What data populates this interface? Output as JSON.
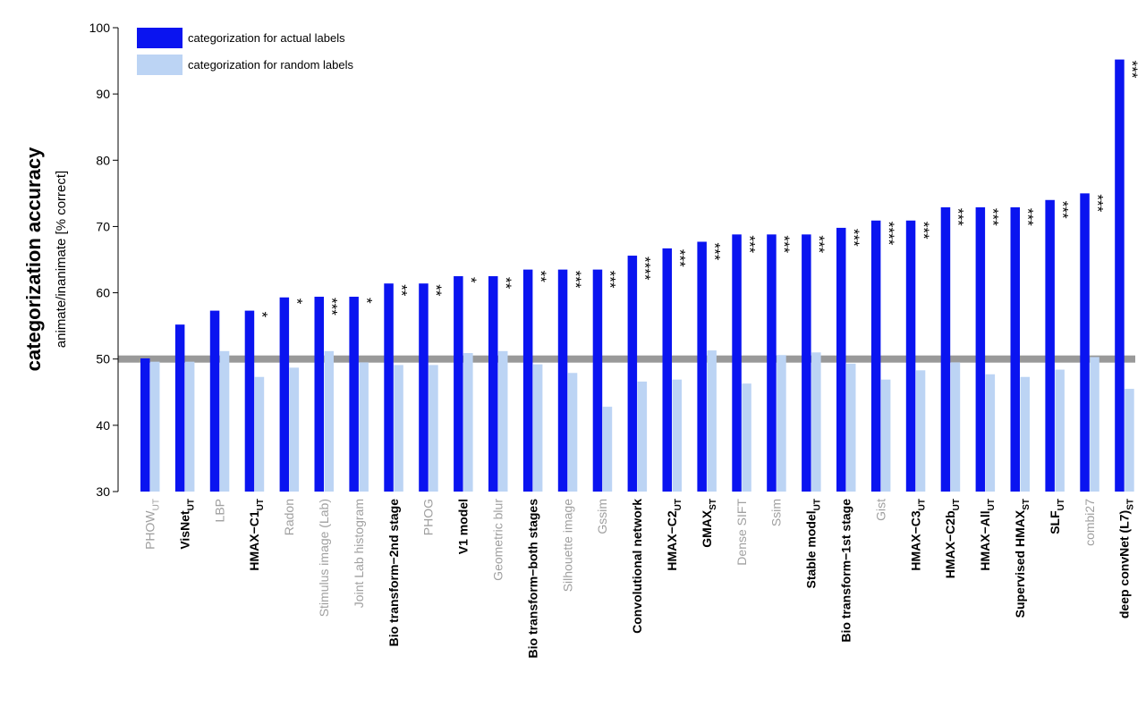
{
  "chart_data": {
    "type": "bar",
    "ylabel": "categorization accuracy",
    "ylabel_sub": "animate/inanimate [% correct]",
    "ylim": [
      30,
      100
    ],
    "yticks": [
      30,
      40,
      50,
      60,
      70,
      80,
      90,
      100
    ],
    "chance_level": 50,
    "grid": false,
    "legend_position": "top-left",
    "colors": {
      "actual": "#0a14f0",
      "random": "#bcd4f4",
      "label_black": "#000000",
      "label_gray": "#a0a0a0",
      "chance_line": "#999999"
    },
    "series": [
      {
        "name": "categorization for actual labels",
        "values": [
          50.1,
          55.2,
          57.3,
          57.3,
          59.3,
          59.4,
          59.4,
          61.4,
          61.4,
          62.5,
          62.5,
          63.5,
          63.5,
          63.5,
          65.6,
          66.7,
          67.7,
          68.8,
          68.8,
          68.8,
          69.8,
          70.9,
          70.9,
          72.9,
          72.9,
          72.9,
          74.0,
          75.0,
          95.2
        ]
      },
      {
        "name": "categorization for random labels",
        "values": [
          49.6,
          49.6,
          51.2,
          47.3,
          48.7,
          51.2,
          49.5,
          49.1,
          49.1,
          50.9,
          51.2,
          49.2,
          47.9,
          42.8,
          46.6,
          46.9,
          51.3,
          46.3,
          50.6,
          51.0,
          49.3,
          46.9,
          48.3,
          49.5,
          47.7,
          47.3,
          48.4,
          50.3,
          45.5
        ]
      }
    ],
    "categories": [
      {
        "label": "PHOW",
        "sub": "UT",
        "gray": true,
        "sig": ""
      },
      {
        "label": "VisNet",
        "sub": "UT",
        "gray": false,
        "sig": ""
      },
      {
        "label": "LBP",
        "sub": "",
        "gray": true,
        "sig": ""
      },
      {
        "label": "HMAX−C1",
        "sub": "UT",
        "gray": false,
        "sig": "*"
      },
      {
        "label": "Radon",
        "sub": "",
        "gray": true,
        "sig": "*"
      },
      {
        "label": "Stimulus image (Lab)",
        "sub": "",
        "gray": true,
        "sig": "***"
      },
      {
        "label": "Joint Lab histogram",
        "sub": "",
        "gray": true,
        "sig": "*"
      },
      {
        "label": "Bio transform−2nd  stage",
        "sub": "",
        "gray": false,
        "sig": "**"
      },
      {
        "label": "PHOG",
        "sub": "",
        "gray": true,
        "sig": "**"
      },
      {
        "label": "V1 model",
        "sub": "",
        "gray": false,
        "sig": "*"
      },
      {
        "label": "Geometric blur",
        "sub": "",
        "gray": true,
        "sig": "**"
      },
      {
        "label": "Bio transform−both stages",
        "sub": "",
        "gray": false,
        "sig": "**"
      },
      {
        "label": "Silhouette image",
        "sub": "",
        "gray": true,
        "sig": "***"
      },
      {
        "label": "Gssim",
        "sub": "",
        "gray": true,
        "sig": "***"
      },
      {
        "label": "Convolutional network",
        "sub": "",
        "gray": false,
        "sig": "****"
      },
      {
        "label": "HMAX−C2",
        "sub": "UT",
        "gray": false,
        "sig": "***"
      },
      {
        "label": "GMAX",
        "sub": "ST",
        "gray": false,
        "sig": "***"
      },
      {
        "label": "Dense SIFT",
        "sub": "",
        "gray": true,
        "sig": "***"
      },
      {
        "label": "Ssim",
        "sub": "",
        "gray": true,
        "sig": "***"
      },
      {
        "label": "Stable model",
        "sub": "UT",
        "gray": false,
        "sig": "***"
      },
      {
        "label": "Bio transform−1st stage",
        "sub": "",
        "gray": false,
        "sig": "***"
      },
      {
        "label": "Gist",
        "sub": "",
        "gray": true,
        "sig": "****"
      },
      {
        "label": "HMAX−C3",
        "sub": "UT",
        "gray": false,
        "sig": "***"
      },
      {
        "label": "HMAX−C2b",
        "sub": "UT",
        "gray": false,
        "sig": "***"
      },
      {
        "label": "HMAX−All",
        "sub": "UT",
        "gray": false,
        "sig": "***"
      },
      {
        "label": "Supervised HMAX",
        "sub": "ST",
        "gray": false,
        "sig": "***"
      },
      {
        "label": "SLF",
        "sub": "UT",
        "gray": false,
        "sig": "***"
      },
      {
        "label": "combi27",
        "sub": "",
        "gray": true,
        "sig": "***"
      },
      {
        "label": "deep convNet (L7)",
        "sub": "ST",
        "gray": false,
        "sig": "***"
      }
    ]
  }
}
